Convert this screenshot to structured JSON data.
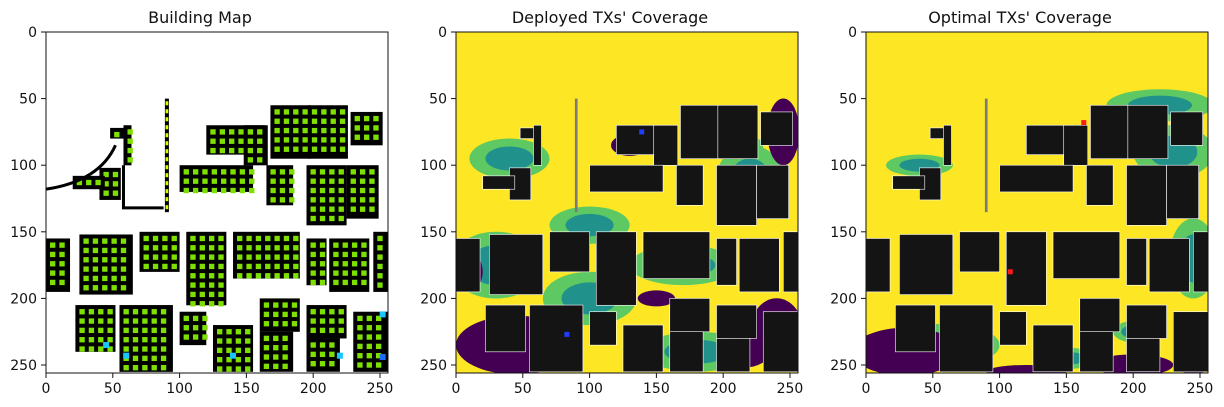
{
  "chart_data": [
    {
      "type": "heatmap",
      "title": "Building Map",
      "xlim": [
        0,
        256
      ],
      "ylim": [
        256,
        0
      ],
      "xticks": [
        0,
        50,
        100,
        150,
        200,
        250
      ],
      "yticks": [
        0,
        50,
        100,
        150,
        200,
        250
      ],
      "colors": {
        "background": "#ffffff",
        "building": "#000000",
        "edge_green": "#7ee000",
        "edge_yellow": "#d7ff00",
        "cyan": "#19c7ff",
        "blue": "#1f6bff"
      },
      "highlights": [
        {
          "x": 45,
          "y": 235,
          "color": "#19c7ff"
        },
        {
          "x": 60,
          "y": 243,
          "color": "#19c7ff"
        },
        {
          "x": 140,
          "y": 243,
          "color": "#19c7ff"
        },
        {
          "x": 220,
          "y": 243,
          "color": "#19c7ff"
        },
        {
          "x": 252,
          "y": 212,
          "color": "#19c7ff"
        },
        {
          "x": 252,
          "y": 244,
          "color": "#1f6bff"
        }
      ]
    },
    {
      "type": "heatmap",
      "title": "Deployed TXs' Coverage",
      "xlim": [
        0,
        256
      ],
      "ylim": [
        256,
        0
      ],
      "xticks": [
        0,
        50,
        100,
        150,
        200,
        250
      ],
      "yticks": [
        0,
        50,
        100,
        150,
        200,
        250
      ],
      "colors": {
        "high": "#fde725",
        "mid_high": "#5ec962",
        "mid": "#21918c",
        "low": "#440154",
        "building": "#141414"
      },
      "transmitters": [
        {
          "x": 139,
          "y": 75,
          "color": "#1f3cff"
        },
        {
          "x": 83,
          "y": 227,
          "color": "#1f3cff"
        }
      ]
    },
    {
      "type": "heatmap",
      "title": "Optimal TXs' Coverage",
      "xlim": [
        0,
        256
      ],
      "ylim": [
        256,
        0
      ],
      "xticks": [
        0,
        50,
        100,
        150,
        200,
        250
      ],
      "yticks": [
        0,
        50,
        100,
        150,
        200,
        250
      ],
      "colors": {
        "high": "#fde725",
        "mid_high": "#5ec962",
        "mid": "#21918c",
        "low": "#440154",
        "building": "#141414"
      },
      "transmitters": [
        {
          "x": 163,
          "y": 68,
          "color": "#ff1a1a"
        },
        {
          "x": 108,
          "y": 180,
          "color": "#ff1a1a"
        }
      ]
    }
  ]
}
